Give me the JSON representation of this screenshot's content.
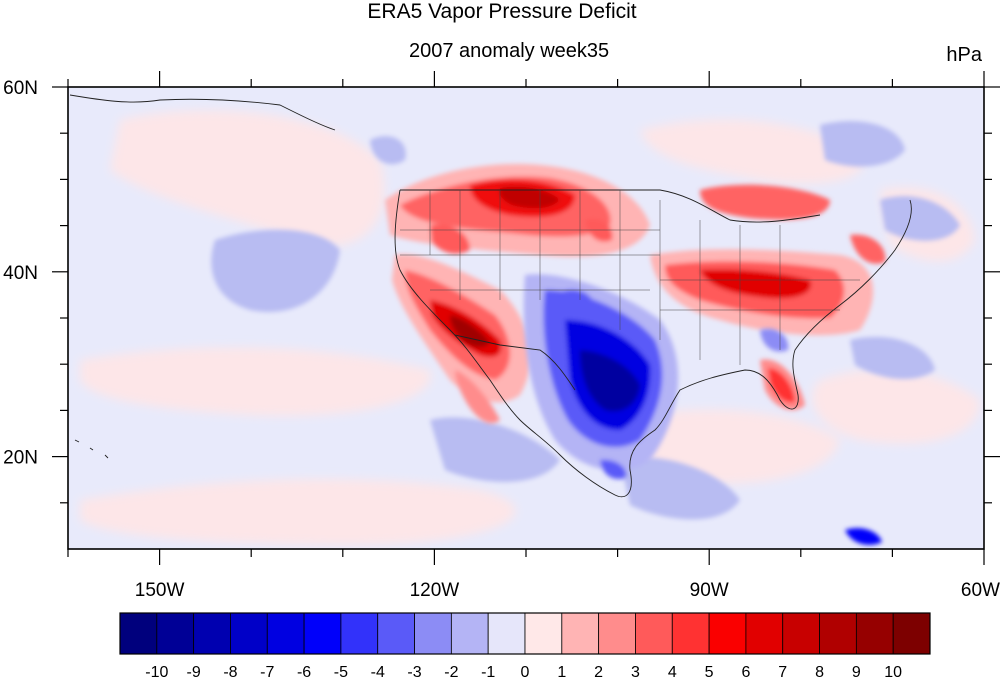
{
  "title": "ERA5 Vapor Pressure Deficit",
  "subtitle": "2007 anomaly week35",
  "units": "hPa",
  "map": {
    "region": "North America and adjacent Pacific/Atlantic",
    "projection": "cylindrical equidistant",
    "lon_range": [
      -160,
      -60
    ],
    "lat_range": [
      10,
      60
    ],
    "lon_ticks": [
      {
        "value": -150,
        "label": "150W"
      },
      {
        "value": -120,
        "label": "120W"
      },
      {
        "value": -90,
        "label": "90W"
      },
      {
        "value": -60,
        "label": "60W"
      }
    ],
    "lat_ticks": [
      {
        "value": 60,
        "label": "60N"
      },
      {
        "value": 40,
        "label": "40N"
      },
      {
        "value": 20,
        "label": "20N"
      }
    ],
    "overlays": [
      "coastlines",
      "us-state-boundaries",
      "country-boundaries"
    ],
    "anomaly_regions": [
      {
        "name": "Northern Plains / Montana",
        "sign": "positive",
        "peak": 7
      },
      {
        "name": "Southwest / California-Arizona",
        "sign": "positive",
        "peak": 9
      },
      {
        "name": "Ohio Valley / Mid-Atlantic",
        "sign": "positive",
        "peak": 6
      },
      {
        "name": "Florida",
        "sign": "positive",
        "peak": 5
      },
      {
        "name": "Texas / Southern Plains",
        "sign": "negative",
        "peak": -9
      },
      {
        "name": "Eastern Pacific",
        "sign": "negative",
        "peak": -2
      }
    ]
  },
  "colorbar": {
    "labels": [
      "-10",
      "-9",
      "-8",
      "-7",
      "-6",
      "-5",
      "-4",
      "-3",
      "-2",
      "-1",
      "0",
      "1",
      "2",
      "3",
      "4",
      "5",
      "6",
      "7",
      "8",
      "9",
      "10"
    ],
    "colors": [
      "#00007d",
      "#000096",
      "#0000b0",
      "#0000c8",
      "#0000e1",
      "#0000fa",
      "#3232fa",
      "#5a5af8",
      "#8c8cf5",
      "#b4b4f5",
      "#e6e6fa",
      "#ffe8e8",
      "#ffb4b4",
      "#ff8c8c",
      "#ff5a5a",
      "#ff3232",
      "#fa0000",
      "#e10000",
      "#c80000",
      "#b00000",
      "#960000",
      "#7d0000"
    ]
  },
  "colors": {
    "background": "#ffffff",
    "frame": "#000000",
    "map_base": "#e8eafb"
  }
}
